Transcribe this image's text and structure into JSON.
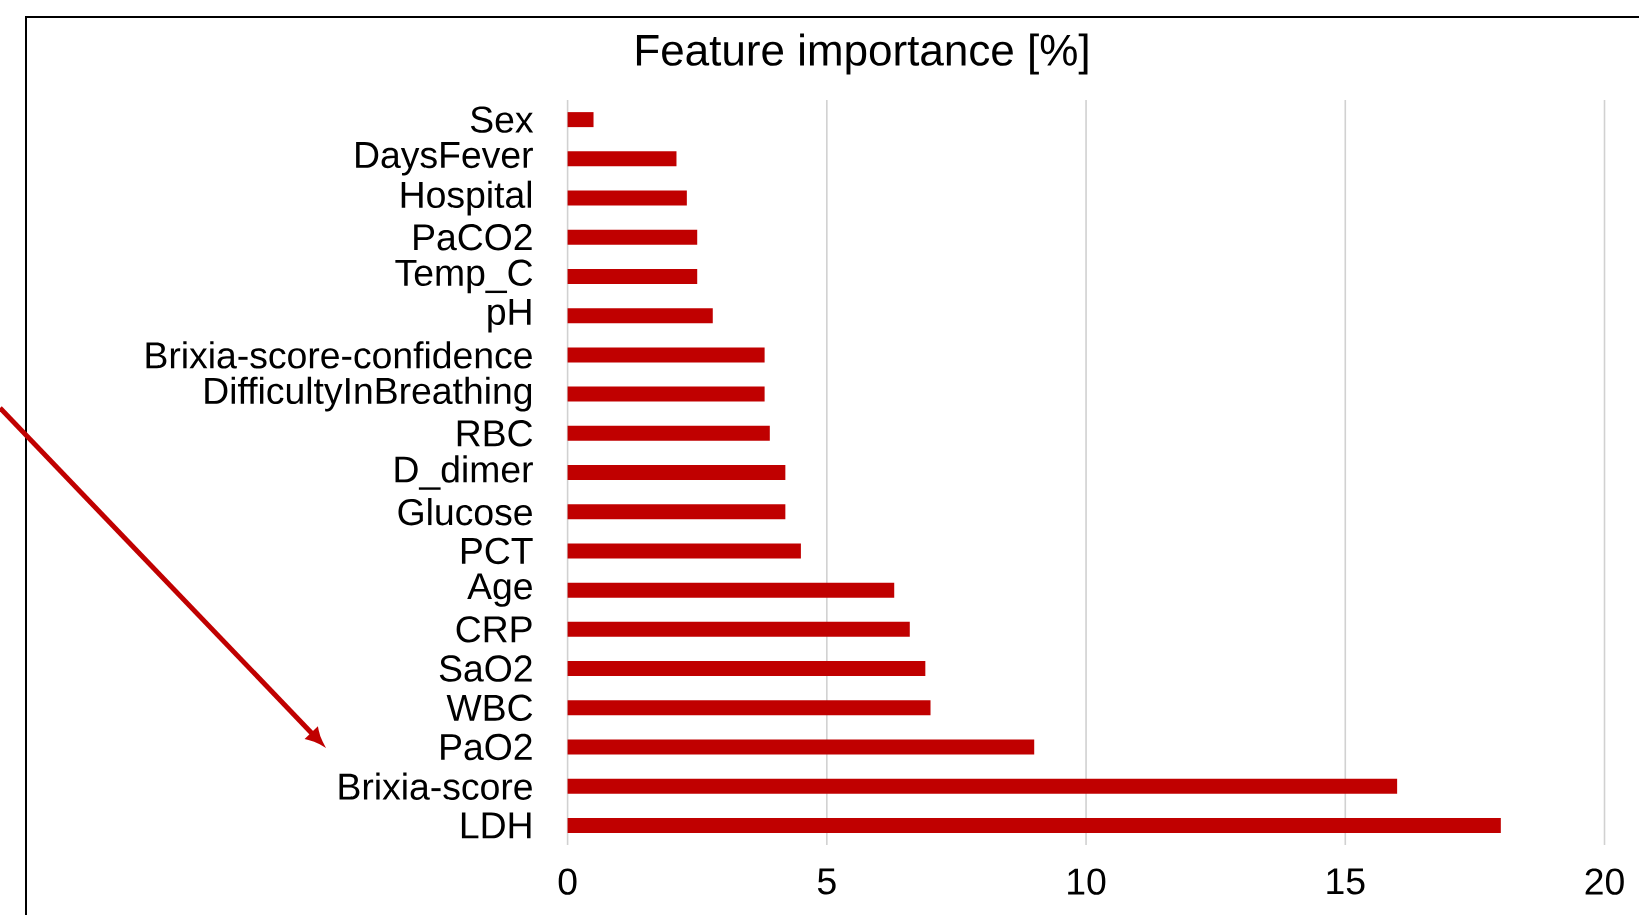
{
  "chart_data": {
    "type": "bar",
    "orientation": "horizontal",
    "title": "Feature importance [%]",
    "categories": [
      "Sex",
      "DaysFever",
      "Hospital",
      "PaCO2",
      "Temp_C",
      "pH",
      "Brixia-score-confidence",
      "DifficultyInBreathing",
      "RBC",
      "D_dimer",
      "Glucose",
      "PCT",
      "Age",
      "CRP",
      "SaO2",
      "WBC",
      "PaO2",
      "Brixia-score",
      "LDH"
    ],
    "values": [
      0.5,
      2.1,
      2.3,
      2.5,
      2.5,
      2.8,
      3.8,
      3.8,
      3.9,
      4.2,
      4.2,
      4.5,
      6.3,
      6.6,
      6.9,
      7.0,
      9.0,
      16.0,
      18.0
    ],
    "color": "#c00000",
    "xlim": [
      0,
      20
    ],
    "xticks": [
      0,
      5,
      10,
      15,
      20
    ],
    "grid": "x"
  }
}
